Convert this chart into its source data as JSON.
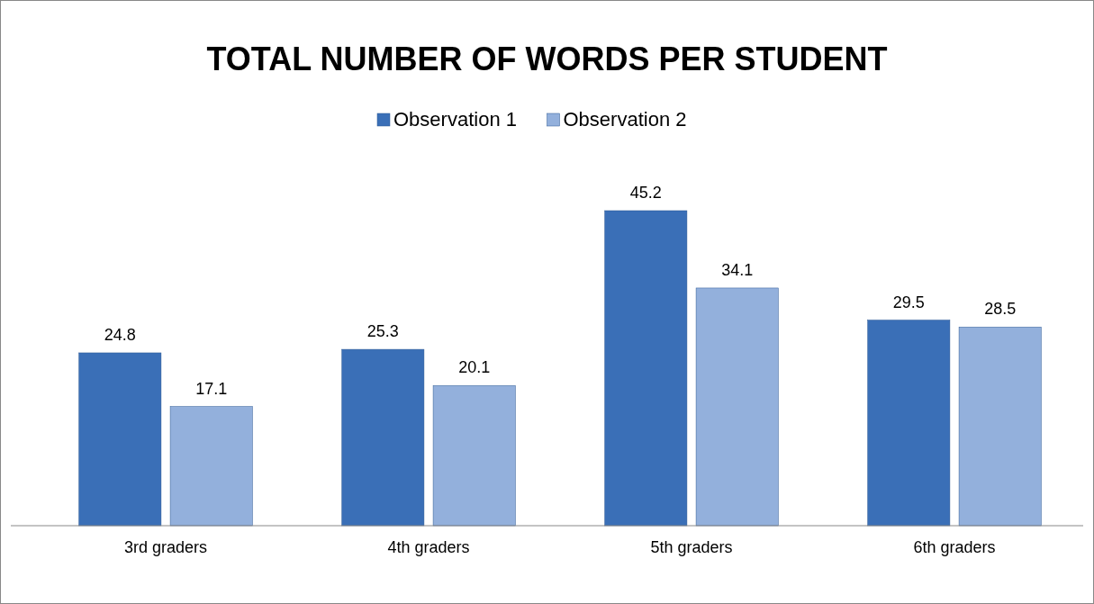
{
  "chart_data": {
    "type": "bar",
    "title": "TOTAL NUMBER OF WORDS PER STUDENT",
    "categories": [
      "3rd graders",
      "4th graders",
      "5th graders",
      "6th graders"
    ],
    "series": [
      {
        "name": "Observation 1",
        "color": "#3a6fb7",
        "values": [
          24.8,
          25.3,
          45.2,
          29.5
        ]
      },
      {
        "name": "Observation 2",
        "color": "#93b0dc",
        "values": [
          17.1,
          20.1,
          34.1,
          28.5
        ]
      }
    ],
    "data_labels": true,
    "legend": "top"
  }
}
